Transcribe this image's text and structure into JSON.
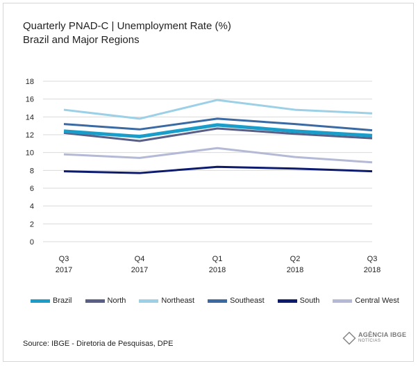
{
  "header": {
    "title": "Quarterly PNAD-C | Unemployment Rate (%)",
    "subtitle": "Brazil and Major Regions"
  },
  "chart_data": {
    "type": "line",
    "categories": [
      [
        "Q3",
        "2017"
      ],
      [
        "Q4",
        "2017"
      ],
      [
        "Q1",
        "2018"
      ],
      [
        "Q2",
        "2018"
      ],
      [
        "Q3",
        "2018"
      ]
    ],
    "ylim": [
      0,
      18
    ],
    "yticks": [
      0,
      2,
      4,
      6,
      8,
      10,
      12,
      14,
      16,
      18
    ],
    "grid": true,
    "legend_position": "bottom",
    "series": [
      {
        "name": "Brazil",
        "color": "#1a9ec9",
        "values": [
          12.4,
          11.8,
          13.1,
          12.4,
          11.9
        ]
      },
      {
        "name": "North",
        "color": "#5a5f87",
        "values": [
          12.2,
          11.3,
          12.7,
          12.1,
          11.6
        ]
      },
      {
        "name": "Northeast",
        "color": "#9bd0e6",
        "values": [
          14.8,
          13.8,
          15.9,
          14.8,
          14.4
        ]
      },
      {
        "name": "Southeast",
        "color": "#3b6aa3",
        "values": [
          13.2,
          12.6,
          13.8,
          13.2,
          12.5
        ]
      },
      {
        "name": "South",
        "color": "#0d1b6e",
        "values": [
          7.9,
          7.7,
          8.4,
          8.2,
          7.9
        ]
      },
      {
        "name": "Central West",
        "color": "#b4b9d6",
        "values": [
          9.8,
          9.4,
          10.5,
          9.5,
          8.9
        ]
      }
    ]
  },
  "footer": {
    "source": "Source: IBGE - Diretoria de Pesquisas, DPE",
    "logo_main": "AGÊNCIA IBGE",
    "logo_sub": "NOTÍCIAS"
  }
}
